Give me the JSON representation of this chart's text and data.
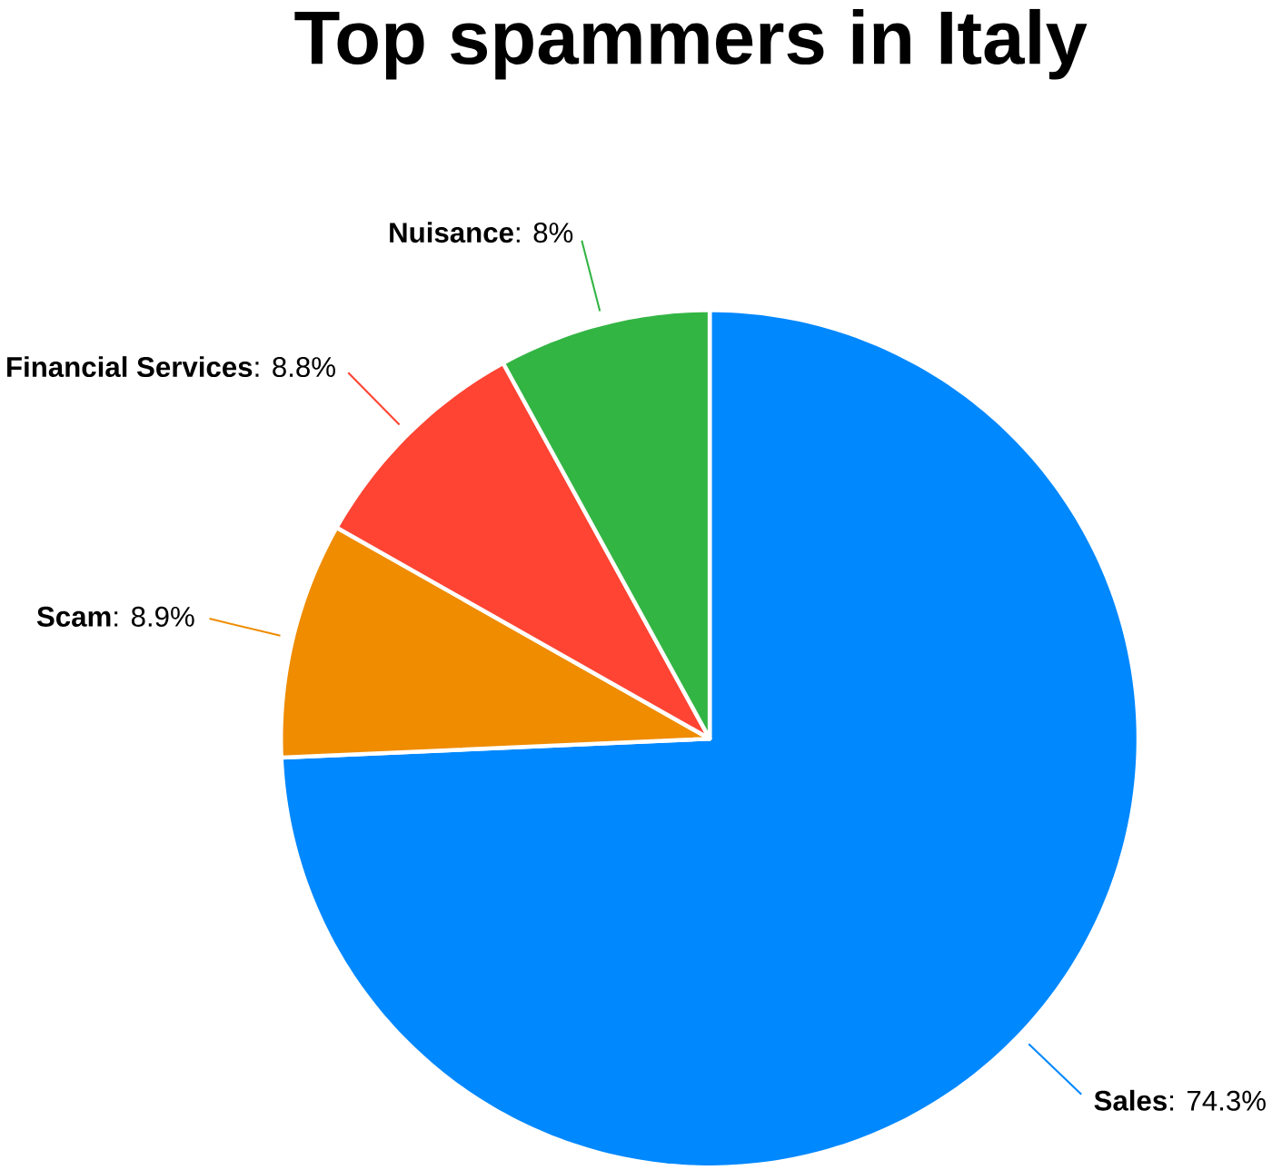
{
  "chart_data": {
    "type": "pie",
    "title": "Top spammers in Italy",
    "categories": [
      "Sales",
      "Scam",
      "Financial Services",
      "Nuisance"
    ],
    "values": [
      74.3,
      8.9,
      8.8,
      8
    ],
    "value_labels": [
      ": 74.3%",
      ": 8.9%",
      ": 8.8%",
      ": 8%"
    ],
    "colors": [
      "#0088ff",
      "#ef8c00",
      "#ff4433",
      "#33b544"
    ]
  }
}
